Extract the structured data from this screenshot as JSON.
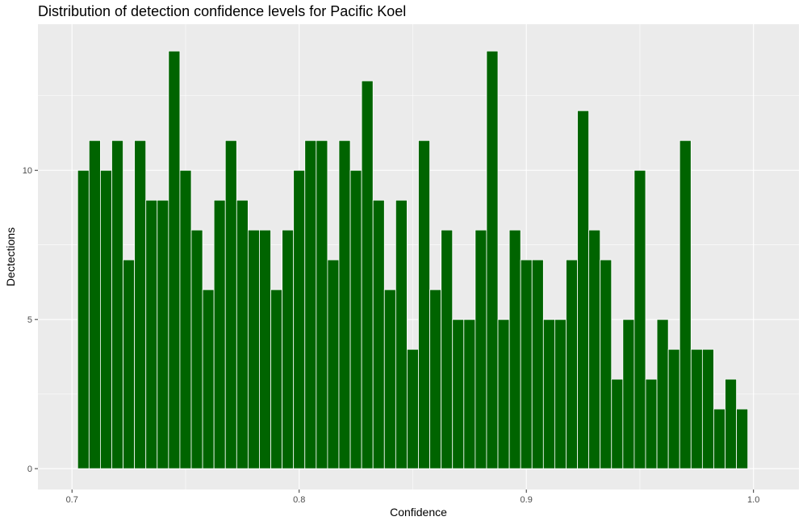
{
  "chart_data": {
    "type": "bar",
    "title": "Distribution of detection confidence levels for Pacific Koel",
    "xlabel": "Confidence",
    "ylabel": "Dectections",
    "xlim": [
      0.685,
      1.02
    ],
    "ylim": [
      -0.7,
      14.9
    ],
    "x_ticks": [
      0.7,
      0.8,
      0.9,
      1.0
    ],
    "x_tick_labels": [
      "0.7",
      "0.8",
      "0.9",
      "1.0"
    ],
    "y_ticks": [
      0,
      5,
      10
    ],
    "y_tick_labels": [
      "0",
      "5",
      "10"
    ],
    "bin_width": 0.005,
    "x": [
      0.705,
      0.71,
      0.715,
      0.72,
      0.725,
      0.73,
      0.735,
      0.74,
      0.745,
      0.75,
      0.755,
      0.76,
      0.765,
      0.77,
      0.775,
      0.78,
      0.785,
      0.79,
      0.795,
      0.8,
      0.805,
      0.81,
      0.815,
      0.82,
      0.825,
      0.83,
      0.835,
      0.84,
      0.845,
      0.85,
      0.855,
      0.86,
      0.865,
      0.87,
      0.875,
      0.88,
      0.885,
      0.89,
      0.895,
      0.9,
      0.905,
      0.91,
      0.915,
      0.92,
      0.925,
      0.93,
      0.935,
      0.94,
      0.945,
      0.95,
      0.955,
      0.96,
      0.965,
      0.97,
      0.975,
      0.98,
      0.985,
      0.99,
      0.995
    ],
    "values": [
      10,
      11,
      10,
      11,
      7,
      11,
      9,
      9,
      14,
      10,
      8,
      6,
      9,
      11,
      9,
      8,
      8,
      6,
      8,
      10,
      11,
      11,
      7,
      11,
      10,
      13,
      9,
      6,
      9,
      4,
      11,
      6,
      8,
      5,
      5,
      8,
      14,
      5,
      8,
      7,
      7,
      5,
      5,
      7,
      12,
      8,
      7,
      3,
      5,
      10,
      3,
      5,
      4,
      11,
      4,
      4,
      2,
      3,
      2
    ],
    "bar_color": "#006400",
    "bar_border_color": "#ffffff",
    "panel_color": "#ebebeb",
    "grid": true,
    "legend": "none"
  }
}
